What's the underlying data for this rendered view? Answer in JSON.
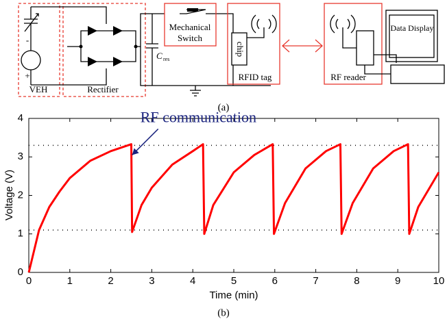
{
  "diagram": {
    "veh": "VEH",
    "plus": "+",
    "minus": "-",
    "rectifier": "Rectifier",
    "capacitor": "C",
    "capacitor_sub": "res",
    "switch": [
      "Mechanical",
      "Switch"
    ],
    "chip": "chip",
    "rfid_tag": "RFID tag",
    "rf_reader": "RF reader",
    "display": "Data Display"
  },
  "captions": [
    "(a)",
    "(b)"
  ],
  "chart_data": {
    "type": "line",
    "xlabel": "Time (min)",
    "ylabel": "Voltage (V)",
    "xlim": [
      0,
      10
    ],
    "ylim": [
      0,
      4
    ],
    "xticks": [
      0,
      1,
      2,
      3,
      4,
      5,
      6,
      7,
      8,
      9,
      10
    ],
    "yticks": [
      0,
      1,
      2,
      3,
      4
    ],
    "reference_lines": [
      3.3,
      1.1
    ],
    "annotation": {
      "text": "RF communication",
      "x": 2.52,
      "y": 3.05
    },
    "series": [
      {
        "color": "#ff0000",
        "x": [
          0,
          0.25,
          0.5,
          0.75,
          1,
          1.5,
          2,
          2.5,
          2.52,
          2.75,
          3,
          3.5,
          4,
          4.25,
          4.28,
          4.5,
          5,
          5.5,
          5.95,
          5.98,
          6.25,
          6.75,
          7.25,
          7.6,
          7.63,
          7.9,
          8.4,
          8.9,
          9.25,
          9.28,
          9.5,
          10
        ],
        "values": [
          0,
          1.1,
          1.7,
          2.1,
          2.45,
          2.9,
          3.15,
          3.33,
          1.05,
          1.75,
          2.2,
          2.8,
          3.15,
          3.33,
          1.0,
          1.75,
          2.6,
          3.05,
          3.33,
          1.0,
          1.8,
          2.7,
          3.15,
          3.33,
          1.0,
          1.8,
          2.7,
          3.15,
          3.33,
          1.0,
          1.7,
          2.6
        ]
      }
    ]
  }
}
